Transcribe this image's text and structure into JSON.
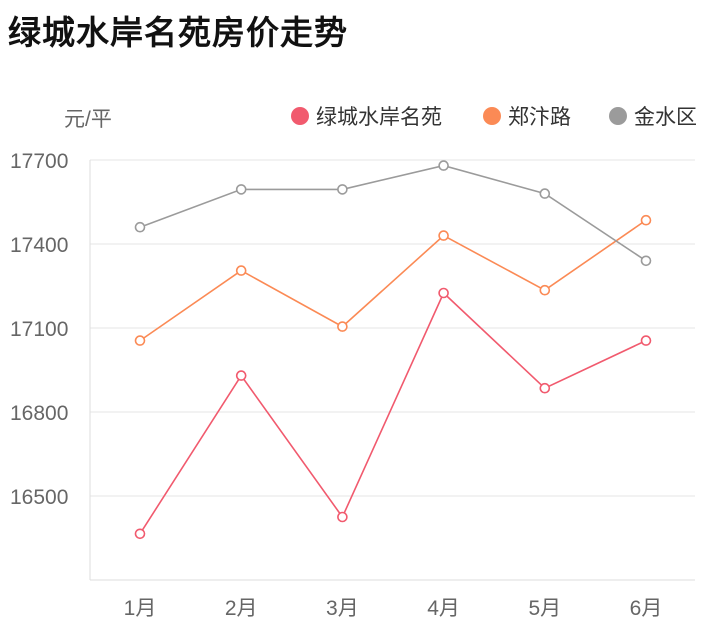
{
  "page": {
    "title": "绿城水岸名苑房价走势"
  },
  "chart_data": {
    "type": "line",
    "title": "绿城水岸名苑房价走势",
    "ylabel": "元/平",
    "xlabel": "",
    "categories": [
      "1月",
      "2月",
      "3月",
      "4月",
      "5月",
      "6月"
    ],
    "yticks": [
      16500,
      16800,
      17100,
      17400,
      17700
    ],
    "ylim": [
      16200,
      17700
    ],
    "grid": true,
    "legend_position": "top-right",
    "series": [
      {
        "name": "绿城水岸名苑",
        "color": "#f15a6e",
        "values": [
          16365,
          16930,
          16425,
          17225,
          16885,
          17055
        ]
      },
      {
        "name": "郑汴路",
        "color": "#fb8a55",
        "values": [
          17055,
          17305,
          17105,
          17430,
          17235,
          17485
        ]
      },
      {
        "name": "金水区",
        "color": "#9b9b9b",
        "values": [
          17460,
          17595,
          17595,
          17680,
          17580,
          17340
        ]
      }
    ]
  }
}
